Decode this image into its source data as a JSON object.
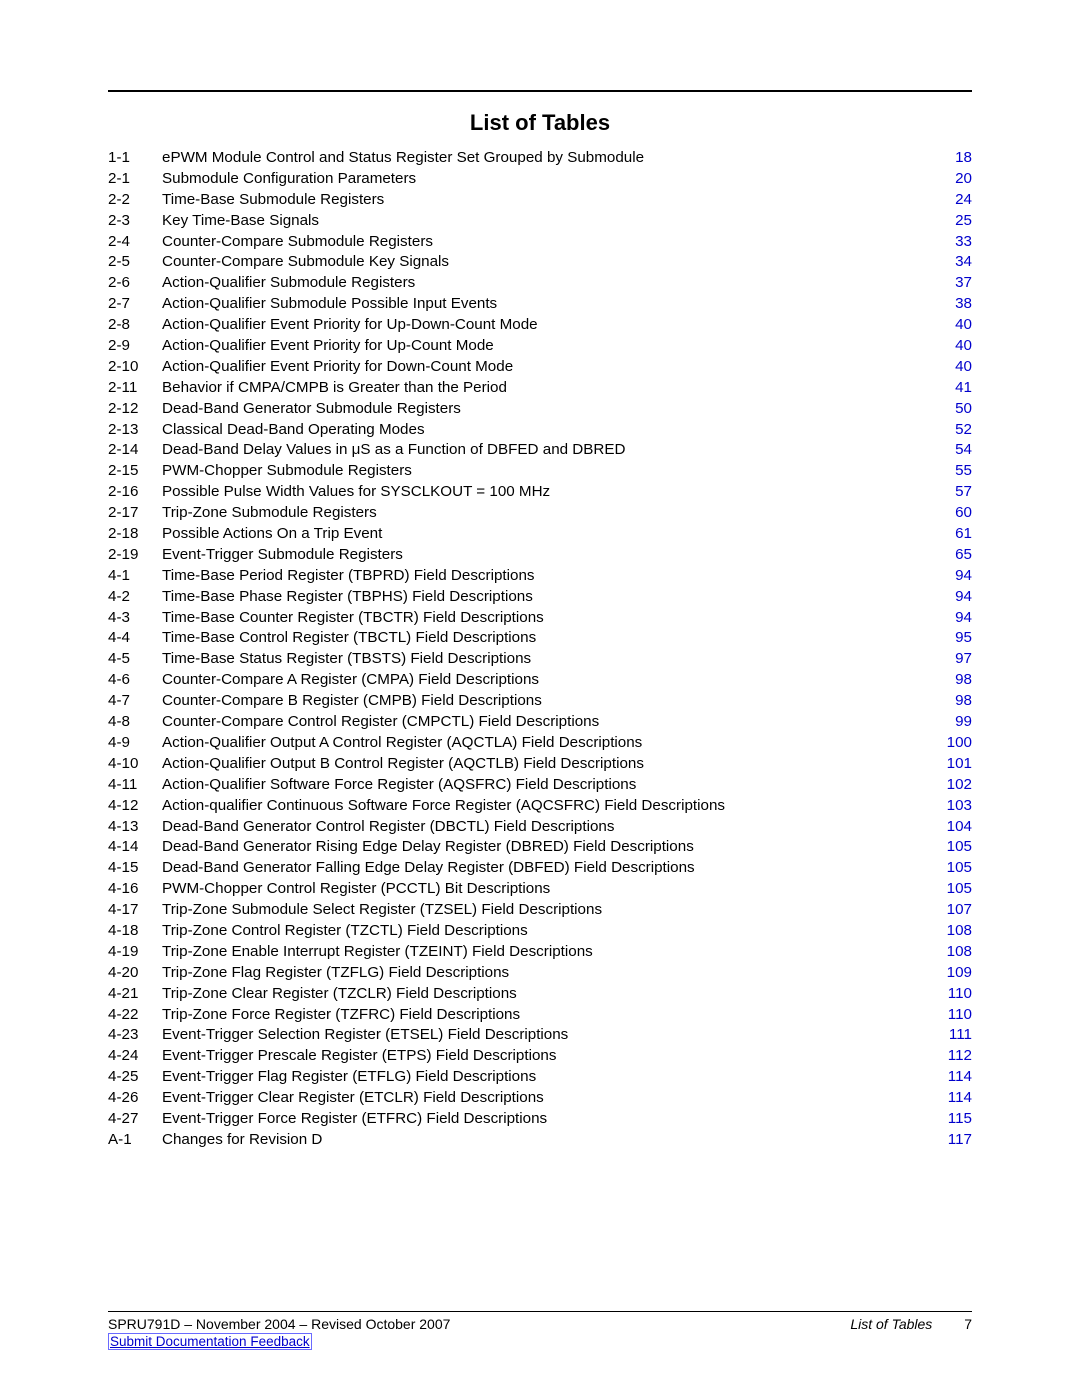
{
  "heading": "List of Tables",
  "link_color": "#0000cc",
  "entries": [
    {
      "num": "1-1",
      "title": "ePWM Module Control and Status Register Set Grouped by Submodule",
      "page": "18"
    },
    {
      "num": "2-1",
      "title": "Submodule Configuration Parameters",
      "page": "20"
    },
    {
      "num": "2-2",
      "title": "Time-Base Submodule Registers ",
      "page": "24"
    },
    {
      "num": "2-3",
      "title": "Key Time-Base Signals",
      "page": "25"
    },
    {
      "num": "2-4",
      "title": "Counter-Compare Submodule Registers ",
      "page": "33"
    },
    {
      "num": "2-5",
      "title": "Counter-Compare Submodule Key Signals",
      "page": "34"
    },
    {
      "num": "2-6",
      "title": "Action-Qualifier Submodule Registers",
      "page": "37"
    },
    {
      "num": "2-7",
      "title": "Action-Qualifier Submodule Possible Input Events ",
      "page": "38"
    },
    {
      "num": "2-8",
      "title": "Action-Qualifier Event Priority for Up-Down-Count Mode",
      "page": "40"
    },
    {
      "num": "2-9",
      "title": "Action-Qualifier Event Priority for Up-Count Mode",
      "page": "40"
    },
    {
      "num": "2-10",
      "title": "Action-Qualifier Event Priority for Down-Count Mode ",
      "page": "40"
    },
    {
      "num": "2-11",
      "title": "Behavior if CMPA/CMPB is Greater than the Period ",
      "page": "41"
    },
    {
      "num": "2-12",
      "title": "Dead-Band Generator Submodule Registers",
      "page": "50"
    },
    {
      "num": "2-13",
      "title": "Classical Dead-Band Operating Modes ",
      "page": "52"
    },
    {
      "num": "2-14",
      "title": "Dead-Band Delay Values in μS as a Function of DBFED and DBRED ",
      "page": "54"
    },
    {
      "num": "2-15",
      "title": "PWM-Chopper Submodule Registers ",
      "page": "55"
    },
    {
      "num": "2-16",
      "title": "Possible Pulse Width Values for SYSCLKOUT = 100 MHz ",
      "page": "57"
    },
    {
      "num": "2-17",
      "title": "Trip-Zone Submodule Registers ",
      "page": "60"
    },
    {
      "num": "2-18",
      "title": "Possible Actions On a Trip Event ",
      "page": "61"
    },
    {
      "num": "2-19",
      "title": "Event-Trigger Submodule Registers ",
      "page": "65"
    },
    {
      "num": "4-1",
      "title": "Time-Base Period Register (TBPRD) Field Descriptions ",
      "page": "94"
    },
    {
      "num": "4-2",
      "title": "Time-Base Phase Register (TBPHS) Field Descriptions",
      "page": "94"
    },
    {
      "num": "4-3",
      "title": "Time-Base Counter Register (TBCTR) Field Descriptions",
      "page": "94"
    },
    {
      "num": "4-4",
      "title": "Time-Base Control Register (TBCTL) Field Descriptions ",
      "page": "95"
    },
    {
      "num": "4-5",
      "title": "Time-Base Status Register (TBSTS) Field Descriptions",
      "page": "97"
    },
    {
      "num": "4-6",
      "title": "Counter-Compare A Register (CMPA) Field Descriptions ",
      "page": "98"
    },
    {
      "num": "4-7",
      "title": "Counter-Compare B Register (CMPB) Field Descriptions ",
      "page": "98"
    },
    {
      "num": "4-8",
      "title": "Counter-Compare Control Register (CMPCTL) Field Descriptions ",
      "page": "99"
    },
    {
      "num": "4-9",
      "title": "Action-Qualifier Output A Control Register (AQCTLA) Field Descriptions ",
      "page": "100"
    },
    {
      "num": "4-10",
      "title": "Action-Qualifier Output B Control Register (AQCTLB) Field Descriptions ",
      "page": "101"
    },
    {
      "num": "4-11",
      "title": "Action-Qualifier Software Force Register (AQSFRC) Field Descriptions",
      "page": "102"
    },
    {
      "num": "4-12",
      "title": "Action-qualifier Continuous Software Force Register (AQCSFRC) Field Descriptions",
      "page": "103"
    },
    {
      "num": "4-13",
      "title": "Dead-Band Generator Control Register (DBCTL) Field Descriptions",
      "page": "104"
    },
    {
      "num": "4-14",
      "title": "Dead-Band Generator Rising Edge Delay Register (DBRED) Field Descriptions ",
      "page": "105"
    },
    {
      "num": "4-15",
      "title": "Dead-Band Generator Falling Edge Delay Register (DBFED) Field Descriptions ",
      "page": "105"
    },
    {
      "num": "4-16",
      "title": "PWM-Chopper Control Register (PCCTL) Bit Descriptions ",
      "page": "105"
    },
    {
      "num": "4-17",
      "title": "Trip-Zone Submodule Select Register (TZSEL) Field Descriptions ",
      "page": "107"
    },
    {
      "num": "4-18",
      "title": "Trip-Zone Control Register (TZCTL) Field Descriptions",
      "page": "108"
    },
    {
      "num": "4-19",
      "title": "Trip-Zone Enable Interrupt Register (TZEINT) Field Descriptions ",
      "page": "108"
    },
    {
      "num": "4-20",
      "title": "Trip-Zone Flag Register (TZFLG) Field Descriptions ",
      "page": "109"
    },
    {
      "num": "4-21",
      "title": "Trip-Zone Clear Register (TZCLR) Field Descriptions ",
      "page": "110"
    },
    {
      "num": "4-22",
      "title": "Trip-Zone Force Register (TZFRC) Field Descriptions ",
      "page": "110"
    },
    {
      "num": "4-23",
      "title": "Event-Trigger Selection Register (ETSEL) Field Descriptions ",
      "page": "111"
    },
    {
      "num": "4-24",
      "title": "Event-Trigger Prescale Register (ETPS) Field Descriptions ",
      "page": "112"
    },
    {
      "num": "4-25",
      "title": "Event-Trigger Flag Register (ETFLG) Field Descriptions ",
      "page": "114"
    },
    {
      "num": "4-26",
      "title": "Event-Trigger Clear Register (ETCLR) Field Descriptions ",
      "page": "114"
    },
    {
      "num": "4-27",
      "title": "Event-Trigger Force Register (ETFRC) Field Descriptions ",
      "page": "115"
    },
    {
      "num": "A-1",
      "title": "Changes for Revision D",
      "page": "117"
    }
  ],
  "footer": {
    "left": "SPRU791D – November 2004 – Revised October 2007",
    "right_label": "List of Tables",
    "right_page": "7",
    "feedback": "Submit Documentation Feedback"
  }
}
